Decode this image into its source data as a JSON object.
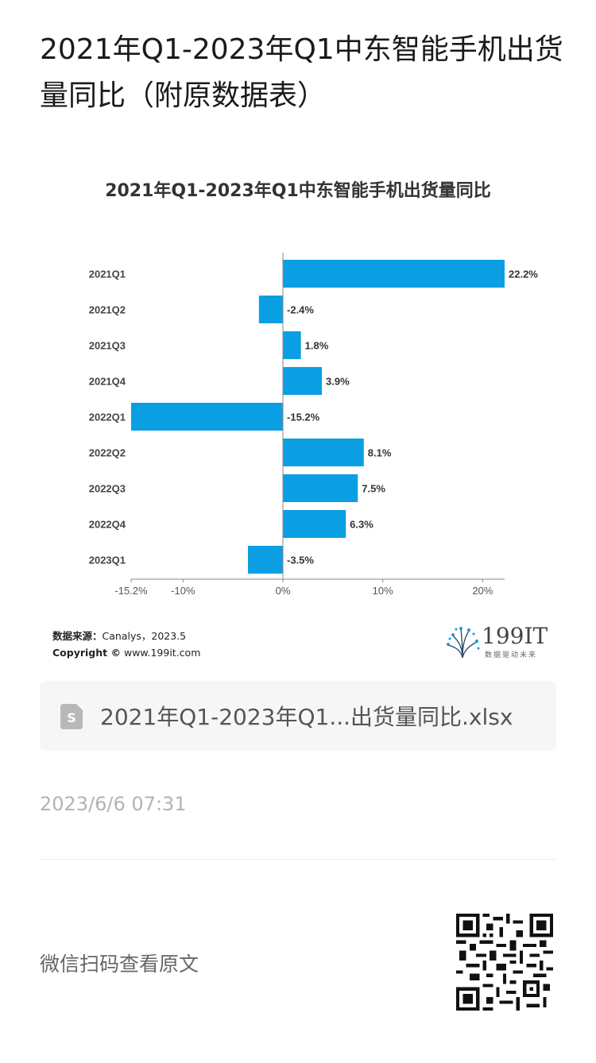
{
  "page_title": "2021年Q1-2023年Q1中东智能手机出货量同比（附原数据表）",
  "chart_data": {
    "type": "bar",
    "orientation": "horizontal",
    "title": "2021年Q1-2023年Q1中东智能手机出货量同比",
    "categories": [
      "2021Q1",
      "2021Q2",
      "2021Q3",
      "2021Q4",
      "2022Q1",
      "2022Q2",
      "2022Q3",
      "2022Q4",
      "2023Q1"
    ],
    "values": [
      22.2,
      -2.4,
      1.8,
      3.9,
      -15.2,
      8.1,
      7.5,
      6.3,
      -3.5
    ],
    "value_labels": [
      "22.2%",
      "-2.4%",
      "1.8%",
      "3.9%",
      "-15.2%",
      "8.1%",
      "7.5%",
      "6.3%",
      "-3.5%"
    ],
    "xlim": [
      -15.2,
      22.2
    ],
    "x_ticks": [
      -15.2,
      -10,
      0,
      10,
      20
    ],
    "x_tick_labels": [
      "-15.2%",
      "-10%",
      "0%",
      "10%",
      "20%"
    ],
    "bar_color": "#0a9fe2",
    "grid": false,
    "legend": "none"
  },
  "source": {
    "label": "数据来源：",
    "text": "Canalys，2023.5",
    "copyright_label": "Copyright ©",
    "copyright_text": "www.199it.com"
  },
  "logo": {
    "name": "199IT",
    "tagline": "数据驱动未来",
    "icon": "dandelion-logo-icon"
  },
  "attachment": {
    "file_name": "2021年Q1-2023年Q1...出货量同比.xlsx",
    "icon": "spreadsheet-file-icon"
  },
  "timestamp": "2023/6/6 07:31",
  "qr_hint": "微信扫码查看原文"
}
